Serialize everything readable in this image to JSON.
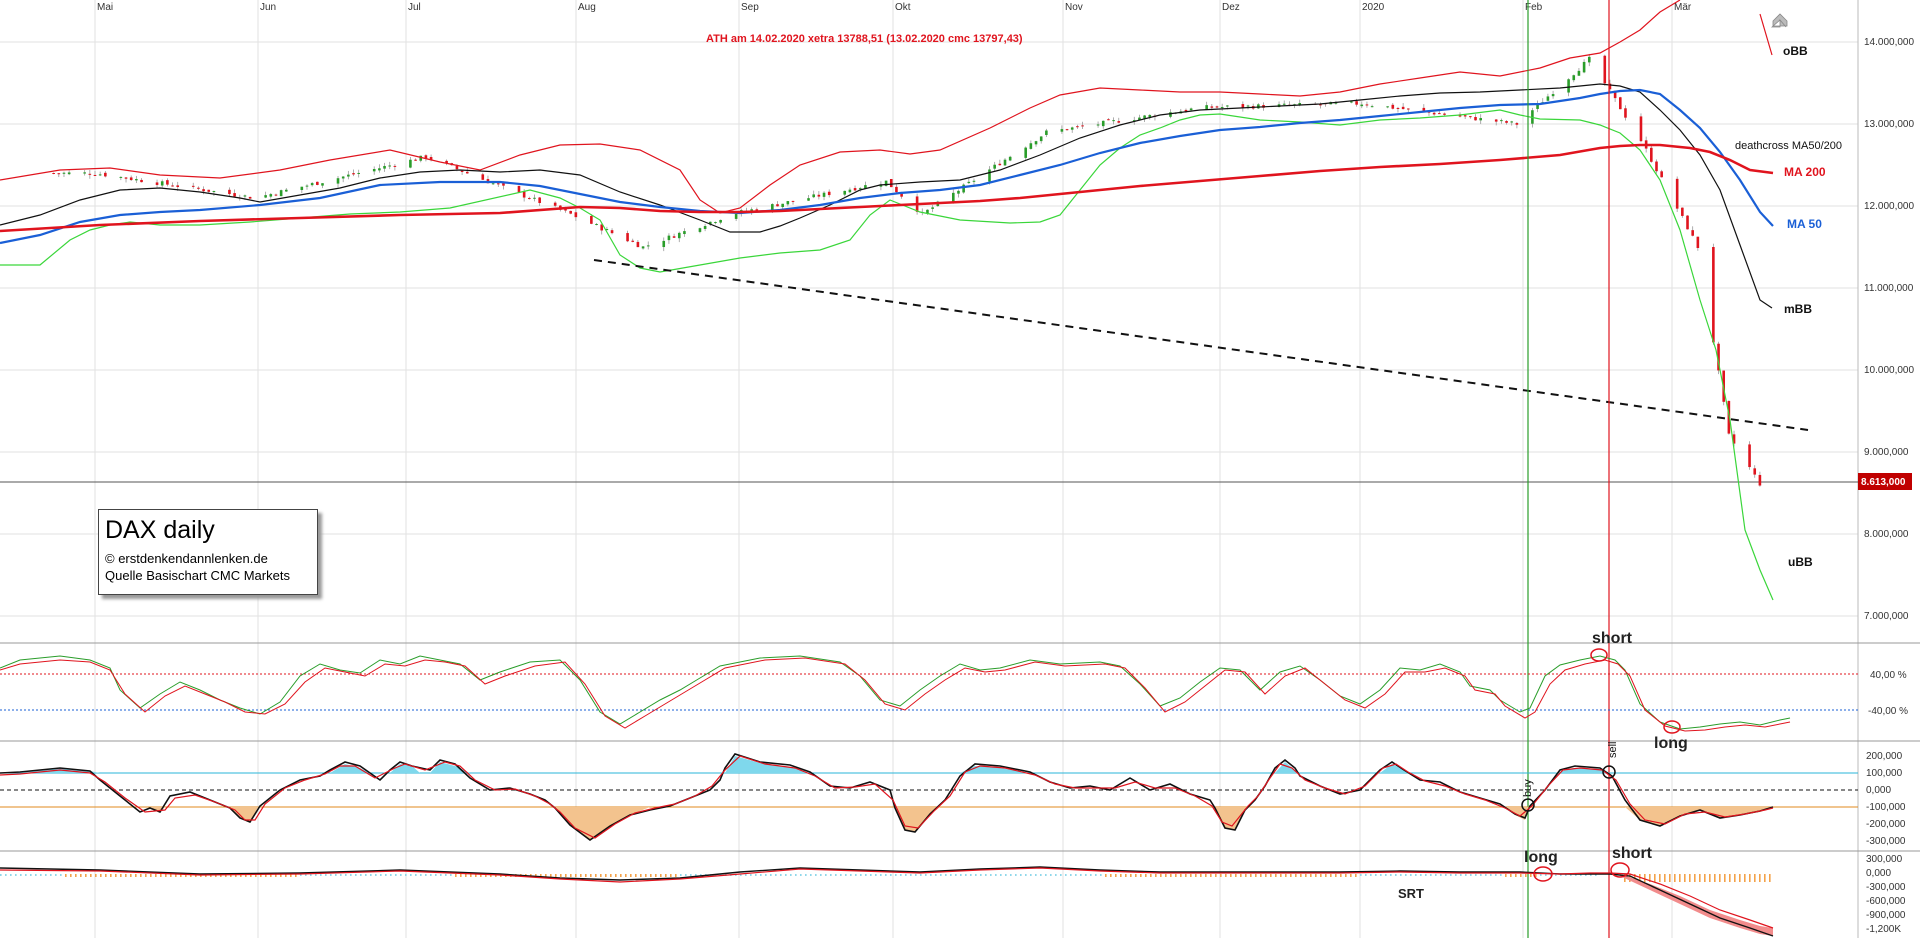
{
  "months": [
    "Mai",
    "Jun",
    "Jul",
    "Aug",
    "Sep",
    "Okt",
    "Nov",
    "Dez",
    "2020",
    "Feb",
    "Mär"
  ],
  "header": {
    "ath_note": "ATH am 14.02.2020 xetra 13788,51 (13.02.2020  cmc 13797,43)"
  },
  "info_box": {
    "title": "DAX daily",
    "copyright": "© erstdenkendannlenken.de",
    "source": "Quelle Basischart CMC Markets"
  },
  "price_axis": {
    "ticks": [
      "14.000,000",
      "13.000,000",
      "12.000,000",
      "11.000,000",
      "10.000,000",
      "9.000,000",
      "8.000,000",
      "7.000,000"
    ],
    "current_label": "8.613,000"
  },
  "labels": {
    "obb": "oBB",
    "deathcross": "deathcross MA50/200",
    "ma200": "MA 200",
    "ma50": "MA 50",
    "mbb": "mBB",
    "ubb": "uBB"
  },
  "stoch_panel": {
    "levels": [
      "40,00 %",
      "-40,00 %"
    ],
    "short": "short",
    "long": "long"
  },
  "momentum_panel": {
    "ticks": [
      "200,000",
      "100,000",
      "0,000",
      "-100,000",
      "-200,000",
      "-300,000"
    ],
    "buy": "buy",
    "sell": "sell"
  },
  "srt_panel": {
    "ticks": [
      "300,000",
      "0,000",
      "-300,000",
      "-600,000",
      "-900,000",
      "-1,200K"
    ],
    "long": "long",
    "short": "short",
    "srt": "SRT"
  },
  "colors": {
    "bull": "#2a9d2a",
    "bear": "#e0141e",
    "ma200": "#e0141e",
    "ma50": "#1a5fd6",
    "mid_bb": "#111111",
    "upper_bb": "#e0141e",
    "lower_bb": "#3ad63a",
    "current_price_bg": "#c00000"
  },
  "chart_data": {
    "type": "candlestick",
    "title": "DAX daily",
    "ylim": [
      6500,
      14400
    ],
    "x_range": [
      "2019-04-23",
      "2020-03-20"
    ],
    "key_points": [
      {
        "date": "2019-05-01",
        "close": 12400
      },
      {
        "date": "2019-06-01",
        "close": 12100
      },
      {
        "date": "2019-07-04",
        "close": 12600
      },
      {
        "date": "2019-08-01",
        "close": 11900
      },
      {
        "date": "2019-08-15",
        "close": 11500
      },
      {
        "date": "2019-09-01",
        "close": 11900
      },
      {
        "date": "2019-10-01",
        "close": 12300
      },
      {
        "date": "2019-10-08",
        "close": 11900
      },
      {
        "date": "2019-11-01",
        "close": 12900
      },
      {
        "date": "2019-12-01",
        "close": 13200
      },
      {
        "date": "2020-01-01",
        "close": 13250
      },
      {
        "date": "2020-01-31",
        "close": 13000
      },
      {
        "date": "2020-02-14",
        "close": 13790
      },
      {
        "date": "2020-02-24",
        "close": 12800
      },
      {
        "date": "2020-03-06",
        "close": 11500
      },
      {
        "date": "2020-03-12",
        "close": 9200
      },
      {
        "date": "2020-03-18",
        "close": 8613
      }
    ],
    "ath": {
      "date": "2020-02-14",
      "value": 13788.51
    },
    "current_price": 8613,
    "trendline": [
      {
        "date": "2019-08-15",
        "value": 11350
      },
      {
        "date": "2020-03-20",
        "value": 9250
      }
    ],
    "events": [
      {
        "date": "2020-01-31",
        "label": "buy"
      },
      {
        "date": "2020-02-14",
        "label": "sell"
      }
    ],
    "series": [
      {
        "name": "MA 200",
        "points": [
          {
            "date": "2019-04-23",
            "value": 11650
          },
          {
            "date": "2019-08-01",
            "value": 11950
          },
          {
            "date": "2019-10-01",
            "value": 12000
          },
          {
            "date": "2020-01-01",
            "value": 12500
          },
          {
            "date": "2020-02-14",
            "value": 12780
          },
          {
            "date": "2020-03-20",
            "value": 12400
          }
        ]
      },
      {
        "name": "MA 50",
        "points": [
          {
            "date": "2019-04-23",
            "value": 11550
          },
          {
            "date": "2019-06-01",
            "value": 12000
          },
          {
            "date": "2019-08-01",
            "value": 12150
          },
          {
            "date": "2019-09-01",
            "value": 11950
          },
          {
            "date": "2019-11-01",
            "value": 12450
          },
          {
            "date": "2020-01-01",
            "value": 13080
          },
          {
            "date": "2020-02-14",
            "value": 13400
          },
          {
            "date": "2020-03-20",
            "value": 11750
          }
        ]
      },
      {
        "name": "mBB",
        "points": [
          {
            "date": "2019-04-23",
            "value": 11700
          },
          {
            "date": "2019-08-01",
            "value": 12300
          },
          {
            "date": "2019-09-01",
            "value": 11650
          },
          {
            "date": "2019-11-01",
            "value": 12800
          },
          {
            "date": "2020-01-01",
            "value": 13250
          },
          {
            "date": "2020-02-14",
            "value": 13500
          },
          {
            "date": "2020-03-20",
            "value": 10700
          }
        ]
      },
      {
        "name": "oBB",
        "points": [
          {
            "date": "2019-08-01",
            "value": 12750
          },
          {
            "date": "2019-09-01",
            "value": 11950
          },
          {
            "date": "2019-12-01",
            "value": 13400
          },
          {
            "date": "2020-02-14",
            "value": 13850
          },
          {
            "date": "2020-03-20",
            "value": 13850
          }
        ]
      },
      {
        "name": "uBB",
        "points": [
          {
            "date": "2019-08-01",
            "value": 11800
          },
          {
            "date": "2019-08-26",
            "value": 11200
          },
          {
            "date": "2019-11-01",
            "value": 12200
          },
          {
            "date": "2020-01-01",
            "value": 13000
          },
          {
            "date": "2020-02-14",
            "value": 13000
          },
          {
            "date": "2020-03-20",
            "value": 7600
          }
        ]
      }
    ]
  }
}
